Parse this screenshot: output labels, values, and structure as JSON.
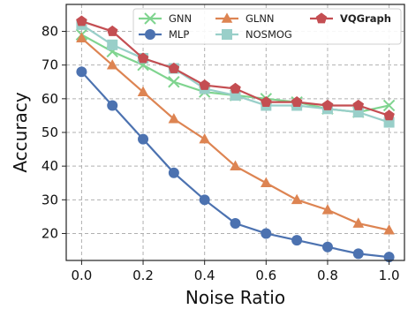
{
  "chart_data": {
    "type": "line",
    "xlabel": "Noise Ratio",
    "ylabel": "Accuracy",
    "xlim": [
      -0.05,
      1.05
    ],
    "ylim": [
      12,
      88
    ],
    "x_ticks": [
      0.0,
      0.2,
      0.4,
      0.6,
      0.8,
      1.0
    ],
    "x_tick_labels": [
      "0.0",
      "0.2",
      "0.4",
      "0.6",
      "0.8",
      "1.0"
    ],
    "y_ticks": [
      20,
      30,
      40,
      50,
      60,
      70,
      80
    ],
    "y_tick_labels": [
      "20",
      "30",
      "40",
      "50",
      "60",
      "70",
      "80"
    ],
    "grid": true,
    "legend_position": "top-right",
    "x": [
      0.0,
      0.1,
      0.2,
      0.3,
      0.4,
      0.5,
      0.6,
      0.7,
      0.8,
      0.9,
      1.0
    ],
    "series": [
      {
        "name": "GNN",
        "color": "#7fd48f",
        "marker": "x",
        "values": [
          79,
          74,
          70,
          65,
          62,
          61,
          60,
          59,
          57,
          56,
          58
        ]
      },
      {
        "name": "MLP",
        "color": "#4c72b0",
        "marker": "circle",
        "values": [
          68,
          58,
          48,
          38,
          30,
          23,
          20,
          18,
          16,
          14,
          13
        ]
      },
      {
        "name": "GLNN",
        "color": "#dd8452",
        "marker": "triangle",
        "values": [
          78,
          70,
          62,
          54,
          48,
          40,
          35,
          30,
          27,
          23,
          21
        ]
      },
      {
        "name": "NOSMOG",
        "color": "#99cfc9",
        "marker": "square",
        "values": [
          82,
          76,
          72,
          69,
          63,
          61,
          58,
          58,
          57,
          56,
          53
        ]
      },
      {
        "name": "VQGraph",
        "color": "#c44e52",
        "marker": "pentagon",
        "bold": true,
        "values": [
          83,
          80,
          72,
          69,
          64,
          63,
          59,
          59,
          58,
          58,
          55
        ]
      }
    ]
  }
}
